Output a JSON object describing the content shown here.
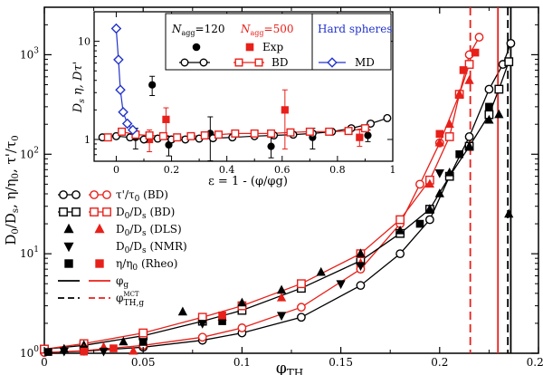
{
  "chart_data": [
    {
      "type": "scatter",
      "title": "",
      "xlabel": "φ_TH",
      "ylabel": "D0/Ds, η/η0, τ'/τ0",
      "xlim": [
        0,
        0.25
      ],
      "ylim": [
        1,
        3000
      ],
      "yscale": "log",
      "x_ticks": [
        "0",
        "0.05",
        "0.1",
        "0.15",
        "0.2",
        "0.25"
      ],
      "y_ticks": [
        {
          "base": "10",
          "exp": "0"
        },
        {
          "base": "10",
          "exp": "1"
        },
        {
          "base": "10",
          "exp": "2"
        },
        {
          "base": "10",
          "exp": "3"
        }
      ],
      "vlines": [
        {
          "name": "φg (Nagg=120)",
          "x": 0.236,
          "color": "#000000",
          "dash": false
        },
        {
          "name": "φTH,g MCT (Nagg=120)",
          "x": 0.2345,
          "color": "#000000",
          "dash": true
        },
        {
          "name": "φg (Nagg=500)",
          "x": 0.2295,
          "color": "#e8201a",
          "dash": false
        },
        {
          "name": "φTH,g MCT (Nagg=500)",
          "x": 0.2155,
          "color": "#e8201a",
          "dash": true
        }
      ],
      "series": [
        {
          "name": "τ'/τ0 (BD) Nagg=120",
          "marker": "circle-open",
          "color": "#000000",
          "line": true,
          "x": [
            0,
            0.02,
            0.05,
            0.08,
            0.1,
            0.13,
            0.16,
            0.18,
            0.195,
            0.205,
            0.215,
            0.225,
            0.232,
            0.236
          ],
          "y": [
            1.02,
            1.05,
            1.15,
            1.35,
            1.6,
            2.3,
            4.8,
            10,
            22,
            60,
            150,
            450,
            800,
            1300
          ]
        },
        {
          "name": "τ'/τ0 (BD) Nagg=500",
          "marker": "circle-open",
          "color": "#e8201a",
          "line": true,
          "x": [
            0,
            0.02,
            0.05,
            0.08,
            0.1,
            0.13,
            0.16,
            0.18,
            0.19,
            0.2,
            0.21,
            0.215,
            0.22
          ],
          "y": [
            1.02,
            1.06,
            1.2,
            1.45,
            1.8,
            2.9,
            7,
            20,
            50,
            130,
            400,
            1000,
            1500
          ]
        },
        {
          "name": "D0/Ds (BD) Nagg=120",
          "marker": "square-open",
          "color": "#000000",
          "line": true,
          "x": [
            0,
            0.02,
            0.05,
            0.08,
            0.1,
            0.13,
            0.16,
            0.18,
            0.195,
            0.205,
            0.215,
            0.225,
            0.23,
            0.235
          ],
          "y": [
            1.1,
            1.2,
            1.5,
            2.1,
            2.7,
            4.5,
            8.5,
            16,
            28,
            60,
            120,
            250,
            450,
            850
          ]
        },
        {
          "name": "D0/Ds (BD) Nagg=500",
          "marker": "square-open",
          "color": "#e8201a",
          "line": true,
          "x": [
            0,
            0.02,
            0.05,
            0.08,
            0.1,
            0.13,
            0.16,
            0.18,
            0.195,
            0.205,
            0.21,
            0.215
          ],
          "y": [
            1.1,
            1.25,
            1.6,
            2.3,
            3.0,
            5.0,
            10,
            22,
            55,
            150,
            400,
            800
          ]
        },
        {
          "name": "D0/Ds (DLS) Nagg=120",
          "marker": "triangle-up",
          "color": "#000000",
          "line": false,
          "x": [
            0.01,
            0.02,
            0.04,
            0.07,
            0.1,
            0.12,
            0.14,
            0.16,
            0.18,
            0.195,
            0.2,
            0.205,
            0.215,
            0.225,
            0.23,
            0.235
          ],
          "y": [
            1.1,
            1.2,
            1.3,
            2.6,
            3.2,
            4.3,
            6.5,
            10,
            17,
            28,
            40,
            65,
            120,
            220,
            250,
            25
          ]
        },
        {
          "name": "D0/Ds (DLS) Nagg=500",
          "marker": "triangle-up",
          "color": "#e8201a",
          "line": false,
          "x": [
            0.02,
            0.03,
            0.045,
            0.09,
            0.12,
            0.16,
            0.195,
            0.2,
            0.205,
            0.21,
            0.215
          ],
          "y": [
            1.1,
            1.15,
            1.05,
            2.3,
            3.6,
            8,
            50,
            130,
            200,
            400,
            550
          ]
        },
        {
          "name": "D0/Ds (NMR)",
          "marker": "triangle-down",
          "color": "#000000",
          "line": false,
          "x": [
            0.01,
            0.02,
            0.03,
            0.08,
            0.12,
            0.15,
            0.16,
            0.2
          ],
          "y": [
            1.05,
            1.1,
            1.05,
            2.0,
            2.4,
            5.0,
            7.6,
            65
          ]
        },
        {
          "name": "η/η0 (Rheo) Nagg=120",
          "marker": "square-filled",
          "color": "#000000",
          "line": false,
          "x": [
            0.002,
            0.02,
            0.05,
            0.09,
            0.19,
            0.21,
            0.225
          ],
          "y": [
            1.03,
            1.08,
            1.3,
            2.1,
            20,
            100,
            300
          ]
        },
        {
          "name": "η/η0 (Rheo) Nagg=500",
          "marker": "square-filled",
          "color": "#e8201a",
          "line": false,
          "x": [
            0.02,
            0.035,
            0.09,
            0.2,
            0.212,
            0.218
          ],
          "y": [
            1.04,
            1.12,
            2.4,
            160,
            700,
            1050
          ]
        }
      ],
      "legend_position": "bottom-left",
      "legend": [
        {
          "label": "τ'/τ0 (BD)",
          "black": "circle-open-line",
          "red": "circle-open-line"
        },
        {
          "label": "D0/Ds (BD)",
          "black": "square-open-line",
          "red": "square-open-line"
        },
        {
          "label": "D0/Ds (DLS)",
          "black": "triangle-up",
          "red": "triangle-up"
        },
        {
          "label": "D0/Ds (NMR)",
          "black": "triangle-down",
          "red": ""
        },
        {
          "label": "η/η0 (Rheo)",
          "black": "square-filled",
          "red": "square-filled"
        },
        {
          "label": "φg",
          "black": "line-solid",
          "red": "line-solid"
        },
        {
          "label": "φTH,g MCT",
          "black": "line-dashed",
          "red": "line-dashed"
        }
      ]
    },
    {
      "type": "scatter",
      "title": "inset",
      "xlabel": "ε = 1 - (φ/φg)",
      "ylabel": "Ds η, Dτ'",
      "xlim": [
        -0.08,
        1.0
      ],
      "ylim": [
        0.6,
        20
      ],
      "yscale": "log",
      "x_ticks": [
        "0",
        "0.2",
        "0.4",
        "0.6",
        "0.8",
        "1"
      ],
      "y_ticks": [
        "1",
        "10"
      ],
      "header": {
        "nagg_120": "N",
        "nagg_120_sub": "agg",
        "nagg_120_value": "=120",
        "nagg_500": "N",
        "nagg_500_sub": "agg",
        "nagg_500_value": "=500",
        "hard_spheres": "Hard spheres",
        "exp": "Exp",
        "bd": "BD",
        "md": "MD"
      },
      "series": [
        {
          "name": "Exp Nagg=120",
          "marker": "circle-filled",
          "color": "#000000",
          "x": [
            0.07,
            0.13,
            0.19,
            0.34,
            0.56,
            0.71,
            0.91
          ],
          "y": [
            1.05,
            3.6,
            0.88,
            1.15,
            0.85,
            1.05,
            1.1
          ],
          "err": [
            0.25,
            0.8,
            0.2,
            0.55,
            0.2,
            0.25,
            0.15
          ]
        },
        {
          "name": "Exp Nagg=500",
          "marker": "square-filled",
          "color": "#e8201a",
          "x": [
            0.12,
            0.18,
            0.61,
            0.88
          ],
          "y": [
            1.0,
            1.6,
            2.0,
            1.05
          ],
          "err": [
            0.25,
            0.5,
            1.2,
            0.2
          ]
        },
        {
          "name": "BD Nagg=120",
          "marker": "circle-open",
          "color": "#000000",
          "x": [
            -0.05,
            0.0,
            0.05,
            0.1,
            0.15,
            0.2,
            0.25,
            0.3,
            0.35,
            0.42,
            0.5,
            0.57,
            0.64,
            0.71,
            0.78,
            0.85,
            0.92,
            0.98
          ],
          "y": [
            1.05,
            1.08,
            1.05,
            1.0,
            1.02,
            1.0,
            1.0,
            1.02,
            1.03,
            1.05,
            1.08,
            1.1,
            1.12,
            1.15,
            1.2,
            1.3,
            1.45,
            1.65
          ]
        },
        {
          "name": "BD Nagg=500",
          "marker": "square-open",
          "color": "#e8201a",
          "x": [
            -0.03,
            0.02,
            0.07,
            0.12,
            0.17,
            0.22,
            0.27,
            0.32,
            0.37,
            0.43,
            0.5,
            0.56,
            0.63,
            0.7,
            0.77,
            0.84,
            0.9
          ],
          "y": [
            1.05,
            1.2,
            1.12,
            1.1,
            1.08,
            1.05,
            1.08,
            1.1,
            1.12,
            1.15,
            1.15,
            1.15,
            1.18,
            1.2,
            1.2,
            1.22,
            1.3
          ]
        },
        {
          "name": "MD Hard spheres",
          "marker": "diamond-open",
          "color": "#2233cc",
          "x": [
            0.0,
            0.008,
            0.015,
            0.025,
            0.04,
            0.06
          ],
          "y": [
            13.5,
            6.5,
            3.2,
            1.9,
            1.45,
            1.25
          ]
        }
      ]
    }
  ]
}
